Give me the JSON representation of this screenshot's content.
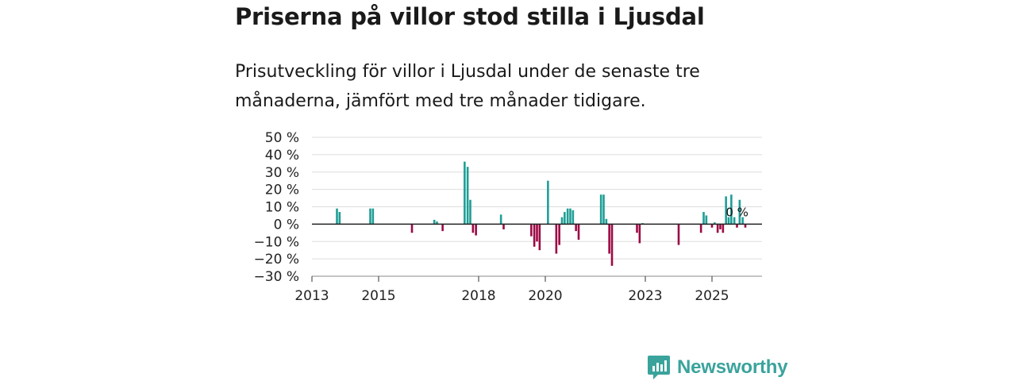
{
  "header": {
    "title": "Priserna på villor stod stilla i Ljusdal",
    "subtitle": "Prisutveckling för villor i Ljusdal under de senaste tre månaderna, jämfört med tre månader tidigare."
  },
  "brand": {
    "name": "Newsworthy",
    "icon": "newsworthy-logo-icon"
  },
  "colors": {
    "positive": "#1f9e96",
    "negative": "#9c0a45",
    "grid": "#dddddd",
    "axis": "#222222",
    "brand": "#3aa39c"
  },
  "chart_data": {
    "type": "bar",
    "title": "Priserna på villor stod stilla i Ljusdal",
    "xlabel": "",
    "ylabel": "",
    "ylim": [
      -30,
      50
    ],
    "yticks": [
      -30,
      -20,
      -10,
      0,
      10,
      20,
      30,
      40,
      50
    ],
    "ytick_labels": [
      "−30 %",
      "−20 %",
      "−10 %",
      "0 %",
      "10 %",
      "20 %",
      "30 %",
      "40 %",
      "50 %"
    ],
    "xlim": [
      2013.0,
      2026.5
    ],
    "xticks": [
      2013,
      2015,
      2018,
      2020,
      2023,
      2025
    ],
    "xtick_labels": [
      "2013",
      "2015",
      "2018",
      "2020",
      "2023",
      "2025"
    ],
    "last_value_label": "0 %",
    "points": [
      {
        "x": 2013.75,
        "y": 9
      },
      {
        "x": 2013.83,
        "y": 7
      },
      {
        "x": 2014.75,
        "y": 9
      },
      {
        "x": 2014.83,
        "y": 9
      },
      {
        "x": 2016.0,
        "y": -5
      },
      {
        "x": 2016.67,
        "y": 2.5
      },
      {
        "x": 2016.75,
        "y": 1.5
      },
      {
        "x": 2016.92,
        "y": -4
      },
      {
        "x": 2017.58,
        "y": 36
      },
      {
        "x": 2017.67,
        "y": 33
      },
      {
        "x": 2017.75,
        "y": 14
      },
      {
        "x": 2017.83,
        "y": -5
      },
      {
        "x": 2017.92,
        "y": -6.5
      },
      {
        "x": 2018.67,
        "y": 5.5
      },
      {
        "x": 2018.75,
        "y": -3
      },
      {
        "x": 2019.58,
        "y": -7
      },
      {
        "x": 2019.67,
        "y": -13
      },
      {
        "x": 2019.75,
        "y": -10
      },
      {
        "x": 2019.83,
        "y": -15
      },
      {
        "x": 2020.08,
        "y": 25
      },
      {
        "x": 2020.33,
        "y": -17
      },
      {
        "x": 2020.42,
        "y": -12
      },
      {
        "x": 2020.5,
        "y": 4
      },
      {
        "x": 2020.58,
        "y": 7
      },
      {
        "x": 2020.67,
        "y": 9
      },
      {
        "x": 2020.75,
        "y": 9
      },
      {
        "x": 2020.83,
        "y": 8
      },
      {
        "x": 2020.92,
        "y": -4
      },
      {
        "x": 2021.0,
        "y": -9
      },
      {
        "x": 2021.67,
        "y": 17
      },
      {
        "x": 2021.75,
        "y": 17
      },
      {
        "x": 2021.83,
        "y": 3
      },
      {
        "x": 2021.92,
        "y": -17
      },
      {
        "x": 2022.0,
        "y": -24
      },
      {
        "x": 2022.75,
        "y": -5
      },
      {
        "x": 2022.83,
        "y": -11
      },
      {
        "x": 2022.92,
        "y": 0.6
      },
      {
        "x": 2024.0,
        "y": -12
      },
      {
        "x": 2024.67,
        "y": -5
      },
      {
        "x": 2024.75,
        "y": 7
      },
      {
        "x": 2024.83,
        "y": 5
      },
      {
        "x": 2025.0,
        "y": -2
      },
      {
        "x": 2025.08,
        "y": 1
      },
      {
        "x": 2025.17,
        "y": -5
      },
      {
        "x": 2025.25,
        "y": -3
      },
      {
        "x": 2025.33,
        "y": -5
      },
      {
        "x": 2025.42,
        "y": 16
      },
      {
        "x": 2025.5,
        "y": 4
      },
      {
        "x": 2025.58,
        "y": 17
      },
      {
        "x": 2025.67,
        "y": 4
      },
      {
        "x": 2025.75,
        "y": -2
      },
      {
        "x": 2025.83,
        "y": 14
      },
      {
        "x": 2025.92,
        "y": 4
      },
      {
        "x": 2026.0,
        "y": -2
      },
      {
        "x": 2026.08,
        "y": 0
      }
    ]
  }
}
